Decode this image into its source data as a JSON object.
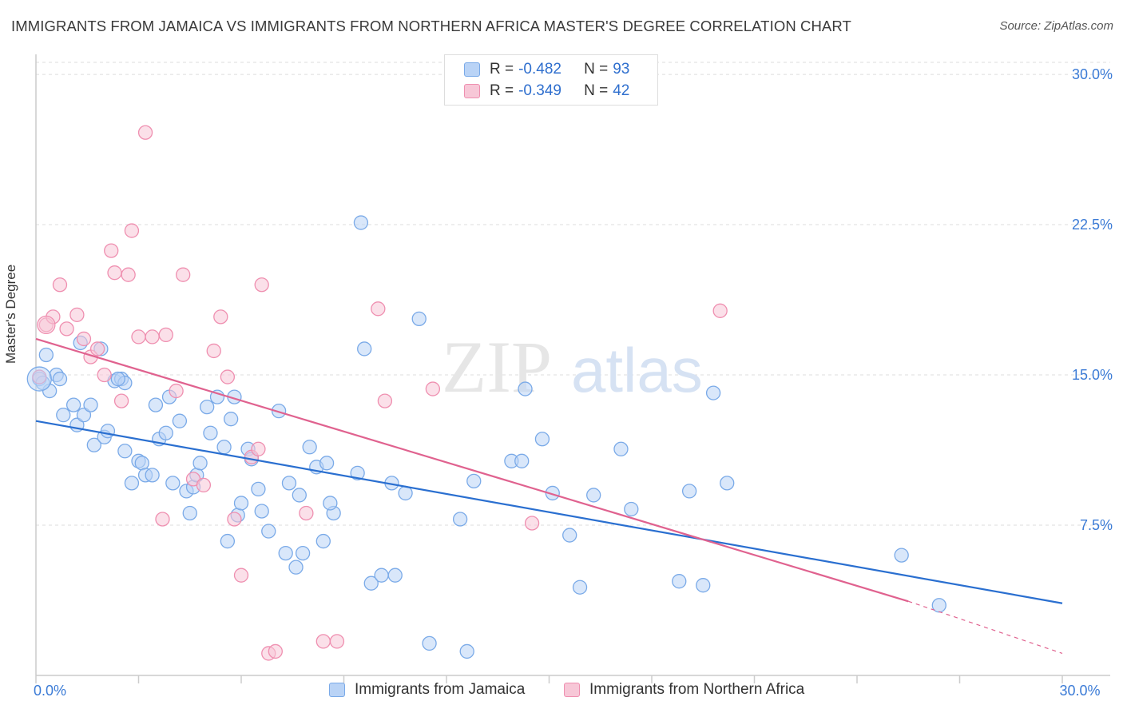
{
  "title": "IMMIGRANTS FROM JAMAICA VS IMMIGRANTS FROM NORTHERN AFRICA MASTER'S DEGREE CORRELATION CHART",
  "source": "Source: ZipAtlas.com",
  "colors": {
    "blue": "#7aaae8",
    "blue_fill": "#b9d3f6",
    "blue_line": "#2a6fd0",
    "pink": "#ef8fb0",
    "pink_fill": "#f7c7d7",
    "pink_line": "#e0628f",
    "axis_text": "#3b7bd6",
    "grid": "#dddddd"
  },
  "legend": {
    "r_label": "R =",
    "n_label": "N =",
    "rows": [
      {
        "series": "blue",
        "r": "-0.482",
        "n": "93"
      },
      {
        "series": "pink",
        "r": "-0.349",
        "n": "42"
      }
    ]
  },
  "watermark": {
    "zip": "ZIP",
    "atlas": "atlas"
  },
  "chart_data": {
    "type": "scatter",
    "title": "IMMIGRANTS FROM JAMAICA VS IMMIGRANTS FROM NORTHERN AFRICA MASTER'S DEGREE CORRELATION CHART",
    "xlabel": "",
    "ylabel": "Master's Degree",
    "xlim": [
      0,
      30
    ],
    "ylim": [
      0,
      31
    ],
    "x_tick_labels": [
      {
        "value": 0,
        "label": "0.0%"
      },
      {
        "value": 30,
        "label": "30.0%"
      }
    ],
    "y_tick_labels": [
      {
        "value": 7.5,
        "label": "7.5%"
      },
      {
        "value": 15,
        "label": "15.0%"
      },
      {
        "value": 22.5,
        "label": "22.5%"
      },
      {
        "value": 30,
        "label": "30.0%"
      }
    ],
    "grid": true,
    "series": [
      {
        "name": "Immigrants from Jamaica",
        "color": "blue",
        "r": -0.482,
        "n": 93,
        "trend": {
          "x": [
            0,
            30
          ],
          "y": [
            12.7,
            3.6
          ]
        },
        "points": [
          [
            0.1,
            14.8
          ],
          [
            0.3,
            16.0
          ],
          [
            0.4,
            14.2
          ],
          [
            0.6,
            15.0
          ],
          [
            0.7,
            14.8
          ],
          [
            0.8,
            13.0
          ],
          [
            1.1,
            13.5
          ],
          [
            1.2,
            12.5
          ],
          [
            1.3,
            16.6
          ],
          [
            1.4,
            13.0
          ],
          [
            1.6,
            13.5
          ],
          [
            1.7,
            11.5
          ],
          [
            1.9,
            16.3
          ],
          [
            2.0,
            11.9
          ],
          [
            2.1,
            12.2
          ],
          [
            2.3,
            14.7
          ],
          [
            2.5,
            14.8
          ],
          [
            2.6,
            14.6
          ],
          [
            2.6,
            11.2
          ],
          [
            2.8,
            9.6
          ],
          [
            3.0,
            10.7
          ],
          [
            3.1,
            10.6
          ],
          [
            3.2,
            10.0
          ],
          [
            3.4,
            10.0
          ],
          [
            3.5,
            13.5
          ],
          [
            3.6,
            11.8
          ],
          [
            3.8,
            12.1
          ],
          [
            3.9,
            13.9
          ],
          [
            4.0,
            9.6
          ],
          [
            4.2,
            12.7
          ],
          [
            4.4,
            9.2
          ],
          [
            4.5,
            8.1
          ],
          [
            4.6,
            9.4
          ],
          [
            4.7,
            10.0
          ],
          [
            4.8,
            10.6
          ],
          [
            5.0,
            13.4
          ],
          [
            5.1,
            12.1
          ],
          [
            5.3,
            13.9
          ],
          [
            5.5,
            11.4
          ],
          [
            5.6,
            6.7
          ],
          [
            5.8,
            13.9
          ],
          [
            5.9,
            8.0
          ],
          [
            6.0,
            8.6
          ],
          [
            6.2,
            11.3
          ],
          [
            6.3,
            10.8
          ],
          [
            6.5,
            9.3
          ],
          [
            6.6,
            8.2
          ],
          [
            6.8,
            7.2
          ],
          [
            7.1,
            13.2
          ],
          [
            7.3,
            6.1
          ],
          [
            7.4,
            9.6
          ],
          [
            7.6,
            5.4
          ],
          [
            7.7,
            9.0
          ],
          [
            7.8,
            6.1
          ],
          [
            8.0,
            11.4
          ],
          [
            8.2,
            10.4
          ],
          [
            8.4,
            6.7
          ],
          [
            8.5,
            10.6
          ],
          [
            8.7,
            8.1
          ],
          [
            8.6,
            8.6
          ],
          [
            9.4,
            10.1
          ],
          [
            9.5,
            22.6
          ],
          [
            9.6,
            16.3
          ],
          [
            9.8,
            4.6
          ],
          [
            10.1,
            5.0
          ],
          [
            10.4,
            9.6
          ],
          [
            10.5,
            5.0
          ],
          [
            10.8,
            9.1
          ],
          [
            11.2,
            17.8
          ],
          [
            11.5,
            1.6
          ],
          [
            12.4,
            7.8
          ],
          [
            12.6,
            1.2
          ],
          [
            12.8,
            9.7
          ],
          [
            13.9,
            10.7
          ],
          [
            14.2,
            10.7
          ],
          [
            14.3,
            14.3
          ],
          [
            14.8,
            11.8
          ],
          [
            15.1,
            9.1
          ],
          [
            15.6,
            7.0
          ],
          [
            15.9,
            4.4
          ],
          [
            16.3,
            9.0
          ],
          [
            17.1,
            11.3
          ],
          [
            17.4,
            8.3
          ],
          [
            18.8,
            4.7
          ],
          [
            19.1,
            9.2
          ],
          [
            19.5,
            4.5
          ],
          [
            19.8,
            14.1
          ],
          [
            20.2,
            9.6
          ],
          [
            25.3,
            6.0
          ],
          [
            26.4,
            3.5
          ],
          [
            0.2,
            14.6
          ],
          [
            2.4,
            14.8
          ],
          [
            5.7,
            12.8
          ]
        ]
      },
      {
        "name": "Immigrants from Northern Africa",
        "color": "pink",
        "r": -0.349,
        "n": 42,
        "trend": {
          "x": [
            0,
            25.5
          ],
          "y": [
            16.8,
            3.7
          ]
        },
        "trend_dashed": {
          "x": [
            25.5,
            30
          ],
          "y": [
            3.7,
            1.1
          ]
        },
        "points": [
          [
            0.1,
            14.9
          ],
          [
            0.3,
            17.5
          ],
          [
            0.5,
            17.9
          ],
          [
            0.7,
            19.5
          ],
          [
            0.9,
            17.3
          ],
          [
            1.2,
            18.0
          ],
          [
            1.4,
            16.8
          ],
          [
            1.6,
            15.9
          ],
          [
            1.8,
            16.3
          ],
          [
            2.0,
            15.0
          ],
          [
            2.2,
            21.2
          ],
          [
            2.3,
            20.1
          ],
          [
            2.5,
            13.7
          ],
          [
            2.7,
            20.0
          ],
          [
            2.8,
            22.2
          ],
          [
            3.0,
            16.9
          ],
          [
            3.2,
            27.1
          ],
          [
            3.4,
            16.9
          ],
          [
            3.7,
            7.8
          ],
          [
            3.8,
            17.0
          ],
          [
            4.1,
            14.2
          ],
          [
            4.3,
            20.0
          ],
          [
            4.6,
            9.8
          ],
          [
            4.9,
            9.5
          ],
          [
            5.2,
            16.2
          ],
          [
            5.4,
            17.9
          ],
          [
            5.6,
            14.9
          ],
          [
            5.8,
            7.8
          ],
          [
            6.0,
            5.0
          ],
          [
            6.3,
            10.9
          ],
          [
            6.5,
            11.3
          ],
          [
            6.6,
            19.5
          ],
          [
            6.8,
            1.1
          ],
          [
            7.0,
            1.2
          ],
          [
            7.9,
            8.1
          ],
          [
            8.4,
            1.7
          ],
          [
            8.8,
            1.7
          ],
          [
            10.0,
            18.3
          ],
          [
            10.2,
            13.7
          ],
          [
            11.6,
            14.3
          ],
          [
            14.5,
            7.6
          ],
          [
            20.0,
            18.2
          ]
        ]
      }
    ]
  },
  "bottom_legend": {
    "items": [
      {
        "label": "Immigrants from Jamaica",
        "color": "blue"
      },
      {
        "label": "Immigrants from Northern Africa",
        "color": "pink"
      }
    ]
  }
}
